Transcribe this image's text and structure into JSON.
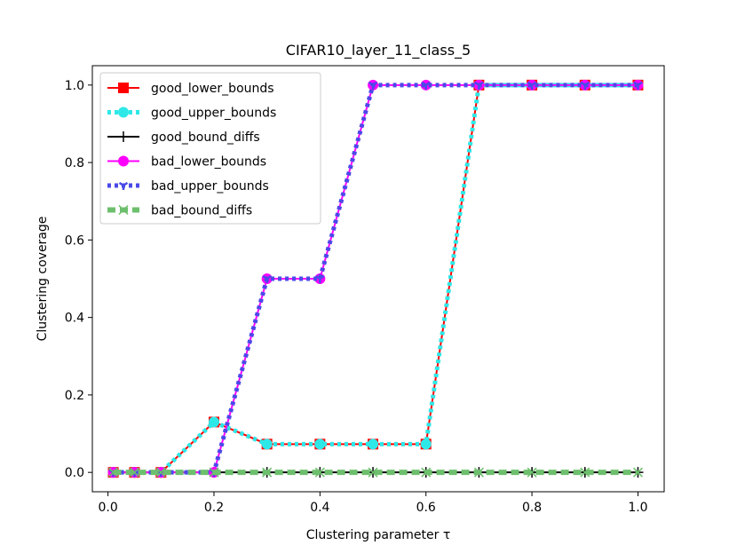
{
  "chart_data": {
    "type": "line",
    "title": "CIFAR10_layer_11_class_5",
    "xlabel": "Clustering parameter τ",
    "ylabel": "Clustering coverage",
    "xlim": [
      -0.0295,
      1.0495
    ],
    "ylim": [
      -0.05,
      1.05
    ],
    "xticks": [
      0.0,
      0.2,
      0.4,
      0.6,
      0.8,
      1.0
    ],
    "xtick_labels": [
      "0.0",
      "0.2",
      "0.4",
      "0.6",
      "0.8",
      "1.0"
    ],
    "yticks": [
      0.0,
      0.2,
      0.4,
      0.6,
      0.8,
      1.0
    ],
    "ytick_labels": [
      "0.0",
      "0.2",
      "0.4",
      "0.6",
      "0.8",
      "1.0"
    ],
    "grid": false,
    "legend_position": "top-left",
    "x": [
      0.01,
      0.05,
      0.1,
      0.2,
      0.3,
      0.4,
      0.5,
      0.6,
      0.7,
      0.8,
      0.9,
      1.0
    ],
    "series": [
      {
        "name": "good_lower_bounds",
        "color": "#ff0000",
        "marker": "square",
        "linestyle": "solid",
        "values": [
          0.0,
          0.0,
          0.0,
          0.13,
          0.073,
          0.073,
          0.073,
          0.073,
          1.0,
          1.0,
          1.0,
          1.0
        ]
      },
      {
        "name": "good_upper_bounds",
        "color": "#2ee8e8",
        "marker": "circle",
        "linestyle": "dotted",
        "values": [
          0.0,
          0.0,
          0.0,
          0.13,
          0.073,
          0.073,
          0.073,
          0.073,
          1.0,
          1.0,
          1.0,
          1.0
        ]
      },
      {
        "name": "good_bound_diffs",
        "color": "#000000",
        "marker": "plus",
        "linestyle": "solid",
        "values": [
          0.0,
          0.0,
          0.0,
          0.0,
          0.0,
          0.0,
          0.0,
          0.0,
          0.0,
          0.0,
          0.0,
          0.0
        ]
      },
      {
        "name": "bad_lower_bounds",
        "color": "#ff00ff",
        "marker": "circle",
        "linestyle": "solid",
        "values": [
          0.0,
          0.0,
          0.0,
          0.0,
          0.5,
          0.5,
          1.0,
          1.0,
          1.0,
          1.0,
          1.0,
          1.0
        ]
      },
      {
        "name": "bad_upper_bounds",
        "color": "#4a4ae8",
        "marker": "tri_down",
        "linestyle": "dotted",
        "values": [
          0.0,
          0.0,
          0.0,
          0.0,
          0.5,
          0.5,
          1.0,
          1.0,
          1.0,
          1.0,
          1.0,
          1.0
        ]
      },
      {
        "name": "bad_bound_diffs",
        "color": "#6dbf6d",
        "marker": "x",
        "linestyle": "dashed",
        "values": [
          0.0,
          0.0,
          0.0,
          0.0,
          0.0,
          0.0,
          0.0,
          0.0,
          0.0,
          0.0,
          0.0,
          0.0
        ]
      }
    ]
  }
}
